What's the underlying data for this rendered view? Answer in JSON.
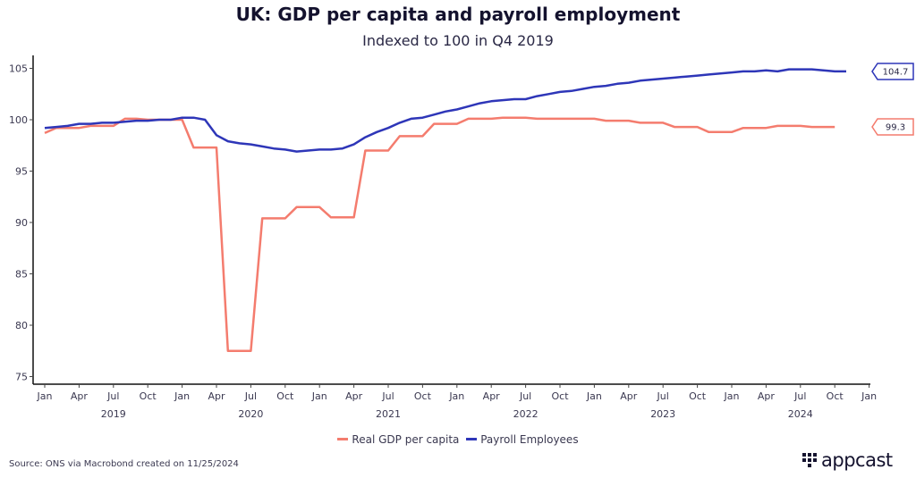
{
  "chart_data": {
    "type": "line",
    "title": "UK: GDP per capita and payroll employment",
    "subtitle": "Indexed to 100 in Q4 2019",
    "xlabel": "",
    "ylabel": "",
    "ylim": [
      75,
      106
    ],
    "yticks": [
      75,
      80,
      85,
      90,
      95,
      100,
      105
    ],
    "x_start": "2019-01",
    "x_end": "2025-01",
    "xtick_months": [
      "Jan",
      "Apr",
      "Jul",
      "Oct",
      "Jan",
      "Apr",
      "Jul",
      "Oct",
      "Jan",
      "Apr",
      "Jul",
      "Oct",
      "Jan",
      "Apr",
      "Jul",
      "Oct",
      "Jan",
      "Apr",
      "Jul",
      "Oct",
      "Jan",
      "Apr",
      "Jul",
      "Oct",
      "Jan"
    ],
    "year_labels": [
      "2019",
      "2020",
      "2021",
      "2022",
      "2023",
      "2024"
    ],
    "grid": false,
    "legend_placement": "bottom",
    "series": [
      {
        "name": "Real GDP per capita",
        "color": "#f47c6e",
        "end_label": "99.3",
        "values": [
          98.7,
          99.2,
          99.2,
          99.2,
          99.4,
          99.4,
          99.4,
          100.1,
          100.1,
          100.0,
          100.0,
          100.0,
          100.0,
          97.3,
          97.3,
          97.3,
          77.5,
          77.5,
          77.5,
          90.4,
          90.4,
          90.4,
          91.5,
          91.5,
          91.5,
          90.5,
          90.5,
          90.5,
          97.0,
          97.0,
          97.0,
          98.4,
          98.4,
          98.4,
          99.6,
          99.6,
          99.6,
          100.1,
          100.1,
          100.1,
          100.2,
          100.2,
          100.2,
          100.1,
          100.1,
          100.1,
          100.1,
          100.1,
          100.1,
          99.9,
          99.9,
          99.9,
          99.7,
          99.7,
          99.7,
          99.3,
          99.3,
          99.3,
          98.8,
          98.8,
          98.8,
          99.2,
          99.2,
          99.2,
          99.4,
          99.4,
          99.4,
          99.3,
          99.3,
          99.3
        ]
      },
      {
        "name": "Payroll Employees",
        "color": "#2e36b8",
        "end_label": "104.7",
        "values": [
          99.2,
          99.3,
          99.4,
          99.6,
          99.6,
          99.7,
          99.7,
          99.8,
          99.9,
          99.9,
          100.0,
          100.0,
          100.2,
          100.2,
          100.0,
          98.5,
          97.9,
          97.7,
          97.6,
          97.4,
          97.2,
          97.1,
          96.9,
          97.0,
          97.1,
          97.1,
          97.2,
          97.6,
          98.3,
          98.8,
          99.2,
          99.7,
          100.1,
          100.2,
          100.5,
          100.8,
          101.0,
          101.3,
          101.6,
          101.8,
          101.9,
          102.0,
          102.0,
          102.3,
          102.5,
          102.7,
          102.8,
          103.0,
          103.2,
          103.3,
          103.5,
          103.6,
          103.8,
          103.9,
          104.0,
          104.1,
          104.2,
          104.3,
          104.4,
          104.5,
          104.6,
          104.7,
          104.7,
          104.8,
          104.7,
          104.9,
          104.9,
          104.9,
          104.8,
          104.7,
          104.7
        ]
      }
    ]
  },
  "footer": {
    "source": "Source: ONS via Macrobond created on 11/25/2024",
    "brand": "appcast"
  }
}
